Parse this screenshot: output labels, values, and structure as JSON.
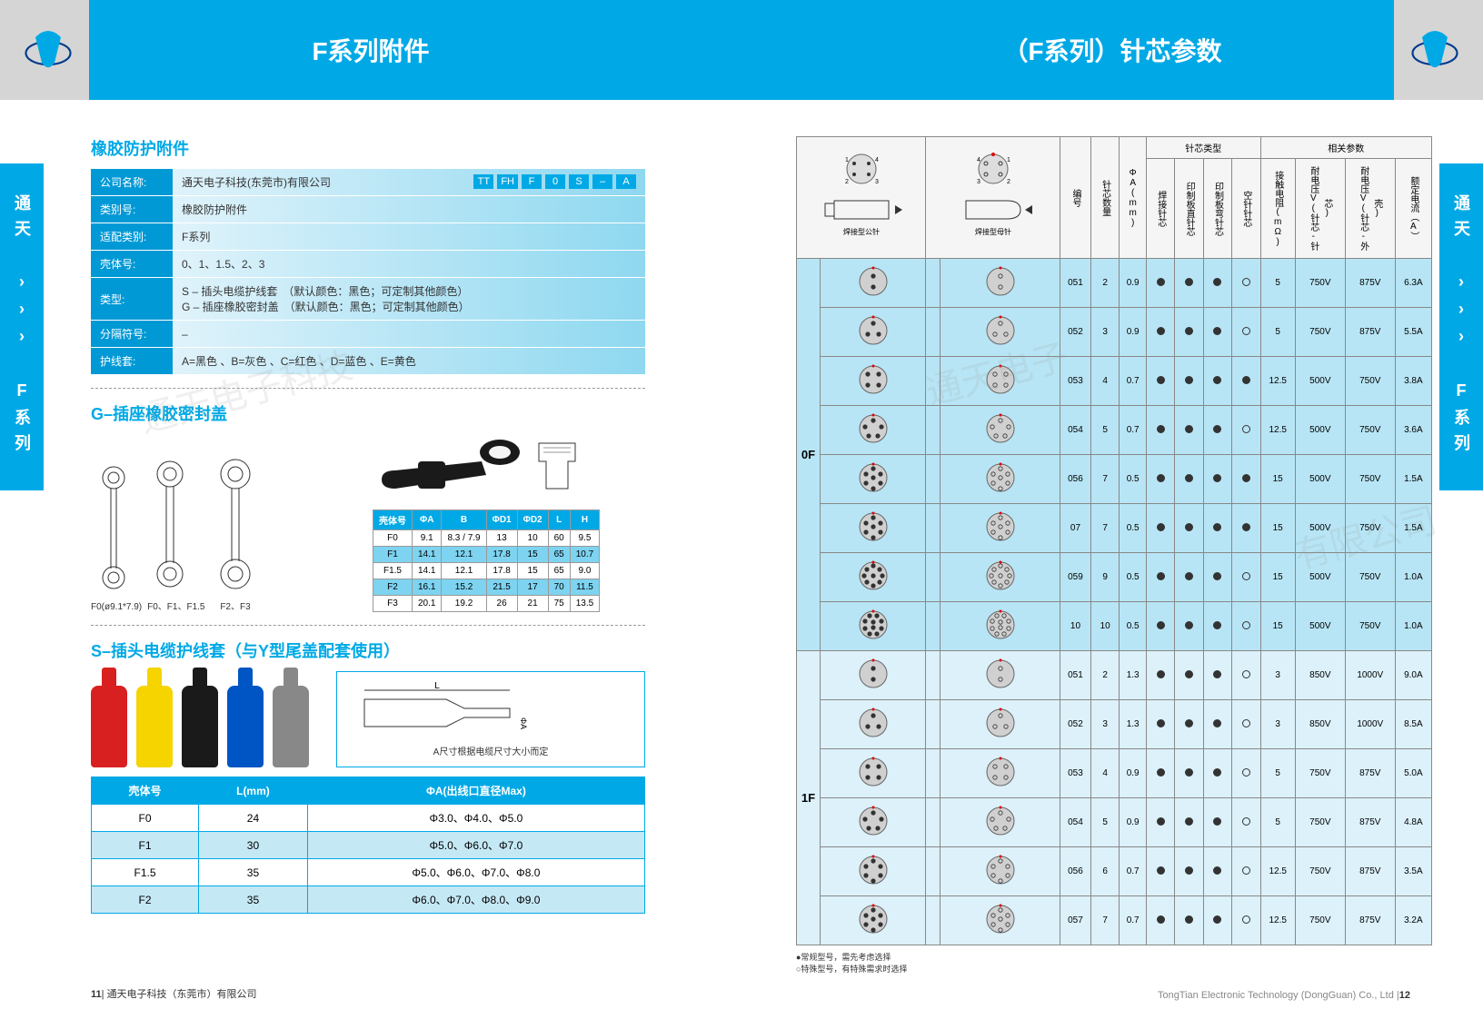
{
  "header": {
    "left_title": "F系列附件",
    "right_title": "（F系列）针芯参数"
  },
  "side_tab": "通天 ››› F系列",
  "left": {
    "section1": {
      "title": "橡胶防护附件",
      "code_parts": [
        "TT",
        "FH",
        "F",
        "0",
        "S",
        "–",
        "A"
      ],
      "rows": [
        {
          "label": "公司名称:",
          "val": "通天电子科技(东莞市)有限公司"
        },
        {
          "label": "类别号:",
          "val": "橡胶防护附件"
        },
        {
          "label": "适配类别:",
          "val": "F系列"
        },
        {
          "label": "壳体号:",
          "val": "0、1、1.5、2、3"
        },
        {
          "label": "类型:",
          "val": "S – 插头电缆护线套　（默认颜色：黑色；可定制其他颜色）\nG – 插座橡胶密封盖　（默认颜色：黑色；可定制其他颜色）"
        },
        {
          "label": "分隔符号:",
          "val": "–"
        },
        {
          "label": "护线套:",
          "val": "A=黑色 、B=灰色 、C=红色 、D=蓝色 、E=黄色"
        }
      ]
    },
    "section2": {
      "title": "G–插座橡胶密封盖",
      "captions": [
        "F0(ø9.1*7.9)",
        "F0、F1、F1.5",
        "F2、F3"
      ],
      "dim_headers": [
        "壳体号",
        "ΦA",
        "B",
        "ΦD1",
        "ΦD2",
        "L",
        "H"
      ],
      "dim_rows": [
        [
          "F0",
          "9.1",
          "8.3 / 7.9",
          "13",
          "10",
          "60",
          "9.5"
        ],
        [
          "F1",
          "14.1",
          "12.1",
          "17.8",
          "15",
          "65",
          "10.7"
        ],
        [
          "F1.5",
          "14.1",
          "12.1",
          "17.8",
          "15",
          "65",
          "9.0"
        ],
        [
          "F2",
          "16.1",
          "15.2",
          "21.5",
          "17",
          "70",
          "11.5"
        ],
        [
          "F3",
          "20.1",
          "19.2",
          "26",
          "21",
          "75",
          "13.5"
        ]
      ],
      "dim_hl_rows": [
        1,
        3
      ]
    },
    "section3": {
      "title": "S–插头电缆护线套（与Y型尾盖配套使用）",
      "sleeve_colors": [
        "#d92020",
        "#f5d400",
        "#1a1a1a",
        "#0055c4",
        "#888888"
      ],
      "note": "A尺寸根据电缆尺寸大小而定",
      "table_headers": [
        "壳体号",
        "L(mm)",
        "ΦA(出线口直径Max)"
      ],
      "table_rows": [
        [
          "F0",
          "24",
          "Φ3.0、Φ4.0、Φ5.0"
        ],
        [
          "F1",
          "30",
          "Φ5.0、Φ6.0、Φ7.0"
        ],
        [
          "F1.5",
          "35",
          "Φ5.0、Φ6.0、Φ7.0、Φ8.0"
        ],
        [
          "F2",
          "35",
          "Φ6.0、Φ7.0、Φ8.0、Φ9.0"
        ]
      ]
    }
  },
  "right": {
    "top_labels": {
      "male": "焊接型公针",
      "female": "焊接型母针",
      "pin_type": "针芯类型",
      "params": "相关参数"
    },
    "col_headers": [
      "编号",
      "针芯数量",
      "ΦA(mm)",
      "焊接针芯",
      "印制板直针芯",
      "印制板弯针芯",
      "空针针芯",
      "接触电阻(mΩ)",
      "耐电压V(针芯-针芯)",
      "耐电压V(针芯-外壳)",
      "额定电流（A）"
    ],
    "groups": [
      {
        "id": "0F",
        "cls": "g0",
        "rows": [
          {
            "pins": 2,
            "code": "051",
            "qty": "2",
            "dia": "0.9",
            "t": [
              "f",
              "f",
              "o"
            ],
            "r": "5",
            "v1": "750V",
            "v2": "875V",
            "a": "6.3A"
          },
          {
            "pins": 3,
            "code": "052",
            "qty": "3",
            "dia": "0.9",
            "t": [
              "f",
              "f",
              "o"
            ],
            "r": "5",
            "v1": "750V",
            "v2": "875V",
            "a": "5.5A"
          },
          {
            "pins": 4,
            "code": "053",
            "qty": "4",
            "dia": "0.7",
            "t": [
              "f",
              "f",
              "f"
            ],
            "r": "12.5",
            "v1": "500V",
            "v2": "750V",
            "a": "3.8A"
          },
          {
            "pins": 5,
            "code": "054",
            "qty": "5",
            "dia": "0.7",
            "t": [
              "f",
              "f",
              "o"
            ],
            "r": "12.5",
            "v1": "500V",
            "v2": "750V",
            "a": "3.6A"
          },
          {
            "pins": 7,
            "code": "056",
            "qty": "7",
            "dia": "0.5",
            "t": [
              "f",
              "f",
              "f"
            ],
            "r": "15",
            "v1": "500V",
            "v2": "750V",
            "a": "1.5A"
          },
          {
            "pins": 7,
            "code": "07",
            "qty": "7",
            "dia": "0.5",
            "t": [
              "f",
              "f",
              "f"
            ],
            "r": "15",
            "v1": "500V",
            "v2": "750V",
            "a": "1.5A"
          },
          {
            "pins": 9,
            "code": "059",
            "qty": "9",
            "dia": "0.5",
            "t": [
              "f",
              "f",
              "o"
            ],
            "r": "15",
            "v1": "500V",
            "v2": "750V",
            "a": "1.0A"
          },
          {
            "pins": 10,
            "code": "10",
            "qty": "10",
            "dia": "0.5",
            "t": [
              "f",
              "f",
              "o"
            ],
            "r": "15",
            "v1": "500V",
            "v2": "750V",
            "a": "1.0A"
          }
        ]
      },
      {
        "id": "1F",
        "cls": "g1",
        "rows": [
          {
            "pins": 2,
            "code": "051",
            "qty": "2",
            "dia": "1.3",
            "t": [
              "f",
              "f",
              "o"
            ],
            "r": "3",
            "v1": "850V",
            "v2": "1000V",
            "a": "9.0A"
          },
          {
            "pins": 3,
            "code": "052",
            "qty": "3",
            "dia": "1.3",
            "t": [
              "f",
              "f",
              "o"
            ],
            "r": "3",
            "v1": "850V",
            "v2": "1000V",
            "a": "8.5A"
          },
          {
            "pins": 4,
            "code": "053",
            "qty": "4",
            "dia": "0.9",
            "t": [
              "f",
              "f",
              "o"
            ],
            "r": "5",
            "v1": "750V",
            "v2": "875V",
            "a": "5.0A"
          },
          {
            "pins": 5,
            "code": "054",
            "qty": "5",
            "dia": "0.9",
            "t": [
              "f",
              "f",
              "o"
            ],
            "r": "5",
            "v1": "750V",
            "v2": "875V",
            "a": "4.8A"
          },
          {
            "pins": 6,
            "code": "056",
            "qty": "6",
            "dia": "0.7",
            "t": [
              "f",
              "f",
              "o"
            ],
            "r": "12.5",
            "v1": "750V",
            "v2": "875V",
            "a": "3.5A"
          },
          {
            "pins": 7,
            "code": "057",
            "qty": "7",
            "dia": "0.7",
            "t": [
              "f",
              "f",
              "o"
            ],
            "r": "12.5",
            "v1": "750V",
            "v2": "875V",
            "a": "3.2A"
          }
        ]
      }
    ],
    "legend": [
      "●常规型号，需先考虑选择",
      "○特殊型号，有特殊需求时选择"
    ]
  },
  "footer": {
    "left_pg": "11",
    "left_txt": "通天电子科技（东莞市）有限公司",
    "right_txt": "TongTian Electronic Technology (DongGuan) Co., Ltd",
    "right_pg": "12"
  },
  "colors": {
    "primary": "#00a9e6",
    "light": "#b8e5f5"
  }
}
